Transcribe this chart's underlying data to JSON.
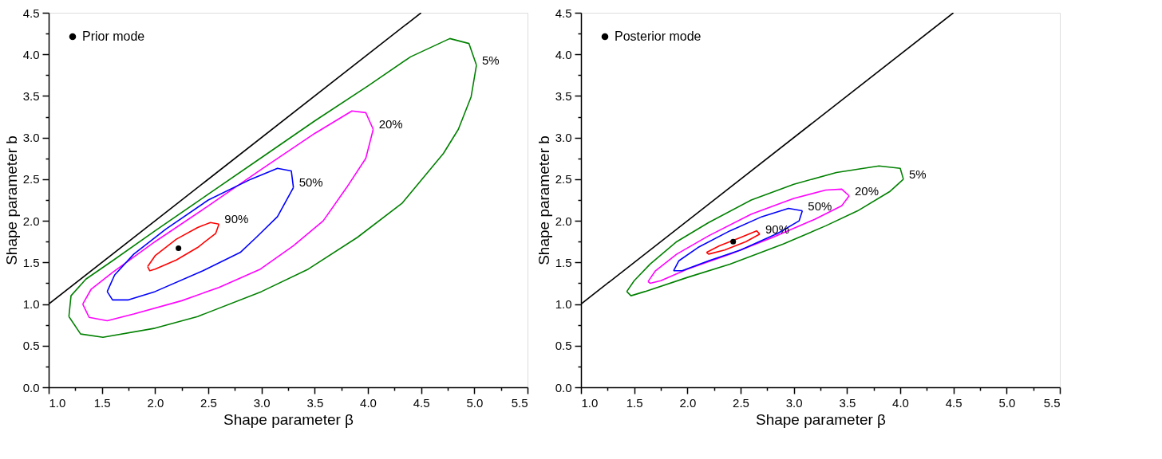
{
  "chart_data": [
    {
      "type": "line",
      "xlabel": "Shape parameter β",
      "ylabel": "Shape parameter b",
      "xlim": [
        1.0,
        5.5
      ],
      "ylim": [
        0.0,
        4.5
      ],
      "legend": "top left",
      "xticks": [
        {
          "value": 1,
          "label": "1.0"
        },
        {
          "value": 1.25,
          "label": null
        },
        1.5,
        {
          "value": 1.75,
          "label": null
        },
        {
          "value": 2,
          "label": "2.0"
        },
        {
          "value": 2.25,
          "label": null
        },
        2.5,
        {
          "value": 2.75,
          "label": null
        },
        {
          "value": 3,
          "label": "3.0"
        },
        {
          "value": 3.25,
          "label": null
        },
        3.5,
        {
          "value": 3.75,
          "label": null
        },
        {
          "value": 4,
          "label": "4.0"
        },
        {
          "value": 4.25,
          "label": null
        },
        4.5,
        {
          "value": 4.75,
          "label": null
        },
        {
          "value": 5,
          "label": "5.0"
        },
        {
          "value": 5.25,
          "label": null
        },
        5.5
      ],
      "yticks": [
        {
          "value": 0,
          "label": "0.0"
        },
        {
          "value": 0.25,
          "label": null
        },
        0.5,
        {
          "value": 0.75,
          "label": null
        },
        {
          "value": 1,
          "label": "1.0"
        },
        {
          "value": 1.25,
          "label": null
        },
        1.5,
        {
          "value": 1.75,
          "label": null
        },
        {
          "value": 2,
          "label": "2.0"
        },
        {
          "value": 2.25,
          "label": null
        },
        2.5,
        {
          "value": 2.75,
          "label": null
        },
        {
          "value": 3,
          "label": "3.0"
        },
        {
          "value": 3.25,
          "label": null
        },
        3.5,
        {
          "value": 3.75,
          "label": null
        },
        {
          "value": 4,
          "label": "4.0"
        },
        {
          "value": 4.25,
          "label": null
        },
        4.5
      ],
      "series": [
        {
          "color": "#000000",
          "x": [
            1.0,
            4.5
          ],
          "values": [
            1.0,
            4.5
          ]
        },
        {
          "name": "5%",
          "color": "#008000",
          "x": [
            1.19,
            1.21,
            1.35,
            1.6,
            2.0,
            2.5,
            3.0,
            3.5,
            4.0,
            4.4,
            4.77,
            4.95,
            5.02
          ],
          "values": [
            0.85,
            1.1,
            1.3,
            1.52,
            1.88,
            2.32,
            2.76,
            3.2,
            3.62,
            3.97,
            4.19,
            4.13,
            3.87
          ]
        },
        {
          "color": "#008000",
          "x": [
            1.19,
            1.3,
            1.51,
            2.0,
            2.4,
            3.0,
            3.44,
            3.9,
            4.32,
            4.71,
            4.85,
            4.97,
            5.02
          ],
          "values": [
            0.85,
            0.64,
            0.6,
            0.71,
            0.85,
            1.15,
            1.42,
            1.8,
            2.21,
            2.81,
            3.1,
            3.49,
            3.87
          ]
        },
        {
          "name": "20%",
          "color": "#ff00ff",
          "x": [
            1.32,
            1.4,
            1.6,
            2.0,
            2.5,
            3.0,
            3.5,
            3.85,
            3.98,
            4.05
          ],
          "values": [
            1.0,
            1.18,
            1.38,
            1.75,
            2.18,
            2.62,
            3.05,
            3.32,
            3.3,
            3.1
          ]
        },
        {
          "color": "#ff00ff",
          "x": [
            1.32,
            1.38,
            1.55,
            1.8,
            2.25,
            2.6,
            2.99,
            3.3,
            3.58,
            3.8,
            3.98,
            4.05
          ],
          "values": [
            1.0,
            0.84,
            0.8,
            0.88,
            1.04,
            1.2,
            1.42,
            1.7,
            2.0,
            2.4,
            2.75,
            3.1
          ]
        },
        {
          "name": "50%",
          "color": "#0000ff",
          "x": [
            1.55,
            1.62,
            1.8,
            2.1,
            2.5,
            2.9,
            3.15,
            3.28,
            3.3
          ],
          "values": [
            1.15,
            1.35,
            1.6,
            1.9,
            2.25,
            2.5,
            2.63,
            2.6,
            2.4
          ]
        },
        {
          "color": "#0000ff",
          "x": [
            1.55,
            1.6,
            1.75,
            2.0,
            2.45,
            2.8,
            2.95,
            3.15,
            3.3
          ],
          "values": [
            1.15,
            1.05,
            1.05,
            1.15,
            1.4,
            1.62,
            1.8,
            2.05,
            2.4
          ]
        },
        {
          "name": "90%",
          "color": "#ff0000",
          "x": [
            1.93,
            2.0,
            2.2,
            2.4,
            2.52,
            2.6
          ],
          "values": [
            1.45,
            1.58,
            1.78,
            1.92,
            1.98,
            1.96
          ]
        },
        {
          "color": "#ff0000",
          "x": [
            1.93,
            1.95,
            2.0,
            2.2,
            2.4,
            2.57,
            2.6
          ],
          "values": [
            1.45,
            1.4,
            1.42,
            1.53,
            1.68,
            1.85,
            1.96
          ]
        },
        {
          "type": "scatter",
          "name": "Prior mode",
          "color": "#000000",
          "marker": "circle",
          "x": [
            2.22
          ],
          "values": [
            1.67
          ]
        }
      ]
    },
    {
      "type": "line",
      "xlabel": "Shape parameter β",
      "ylabel": "Shape parameter b",
      "xlim": [
        1.0,
        5.5
      ],
      "ylim": [
        0.0,
        4.5
      ],
      "legend": "top left",
      "xticks": [
        {
          "value": 1,
          "label": "1.0"
        },
        {
          "value": 1.25,
          "label": null
        },
        1.5,
        {
          "value": 1.75,
          "label": null
        },
        {
          "value": 2,
          "label": "2.0"
        },
        {
          "value": 2.25,
          "label": null
        },
        2.5,
        {
          "value": 2.75,
          "label": null
        },
        {
          "value": 3,
          "label": "3.0"
        },
        {
          "value": 3.25,
          "label": null
        },
        3.5,
        {
          "value": 3.75,
          "label": null
        },
        {
          "value": 4,
          "label": "4.0"
        },
        {
          "value": 4.25,
          "label": null
        },
        4.5,
        {
          "value": 4.75,
          "label": null
        },
        {
          "value": 5,
          "label": "5.0"
        },
        {
          "value": 5.25,
          "label": null
        },
        5.5
      ],
      "yticks": [
        {
          "value": 0,
          "label": "0.0"
        },
        {
          "value": 0.25,
          "label": null
        },
        0.5,
        {
          "value": 0.75,
          "label": null
        },
        {
          "value": 1,
          "label": "1.0"
        },
        {
          "value": 1.25,
          "label": null
        },
        1.5,
        {
          "value": 1.75,
          "label": null
        },
        {
          "value": 2,
          "label": "2.0"
        },
        {
          "value": 2.25,
          "label": null
        },
        2.5,
        {
          "value": 2.75,
          "label": null
        },
        {
          "value": 3,
          "label": "3.0"
        },
        {
          "value": 3.25,
          "label": null
        },
        3.5,
        {
          "value": 3.75,
          "label": null
        },
        {
          "value": 4,
          "label": "4.0"
        },
        {
          "value": 4.25,
          "label": null
        },
        4.5
      ],
      "series": [
        {
          "color": "#000000",
          "x": [
            1.0,
            4.5
          ],
          "values": [
            1.0,
            4.5
          ]
        },
        {
          "name": "5%",
          "color": "#008000",
          "x": [
            1.43,
            1.5,
            1.65,
            1.9,
            2.2,
            2.6,
            3.0,
            3.4,
            3.8,
            4.0,
            4.03
          ],
          "values": [
            1.15,
            1.28,
            1.48,
            1.75,
            1.98,
            2.25,
            2.44,
            2.58,
            2.66,
            2.63,
            2.5
          ]
        },
        {
          "color": "#008000",
          "x": [
            1.43,
            1.47,
            1.6,
            2.0,
            2.4,
            2.9,
            3.3,
            3.6,
            3.9,
            4.03
          ],
          "values": [
            1.15,
            1.1,
            1.15,
            1.32,
            1.48,
            1.72,
            1.94,
            2.12,
            2.35,
            2.5
          ]
        },
        {
          "name": "20%",
          "color": "#ff00ff",
          "x": [
            1.63,
            1.7,
            1.9,
            2.2,
            2.6,
            3.0,
            3.3,
            3.45,
            3.52
          ],
          "values": [
            1.27,
            1.4,
            1.6,
            1.82,
            2.08,
            2.27,
            2.37,
            2.38,
            2.3
          ]
        },
        {
          "color": "#ff00ff",
          "x": [
            1.63,
            1.65,
            1.75,
            2.0,
            2.4,
            2.8,
            3.2,
            3.45,
            3.52
          ],
          "values": [
            1.27,
            1.25,
            1.28,
            1.42,
            1.6,
            1.8,
            2.02,
            2.18,
            2.3
          ]
        },
        {
          "name": "50%",
          "color": "#0000ff",
          "x": [
            1.87,
            1.92,
            2.1,
            2.4,
            2.7,
            2.95,
            3.08
          ],
          "values": [
            1.4,
            1.52,
            1.68,
            1.88,
            2.05,
            2.15,
            2.12
          ]
        },
        {
          "color": "#0000ff",
          "x": [
            1.87,
            1.95,
            2.2,
            2.5,
            2.85,
            3.05,
            3.08
          ],
          "values": [
            1.4,
            1.4,
            1.52,
            1.65,
            1.85,
            2.0,
            2.12
          ]
        },
        {
          "name": "90%",
          "color": "#ff0000",
          "x": [
            2.18,
            2.3,
            2.5,
            2.65,
            2.68
          ],
          "values": [
            1.62,
            1.7,
            1.8,
            1.88,
            1.84
          ]
        },
        {
          "color": "#ff0000",
          "x": [
            2.18,
            2.2,
            2.35,
            2.55,
            2.68
          ],
          "values": [
            1.62,
            1.6,
            1.65,
            1.75,
            1.84
          ]
        },
        {
          "type": "scatter",
          "name": "Posterior mode",
          "color": "#000000",
          "marker": "circle",
          "x": [
            2.43
          ],
          "values": [
            1.75
          ]
        }
      ]
    }
  ]
}
